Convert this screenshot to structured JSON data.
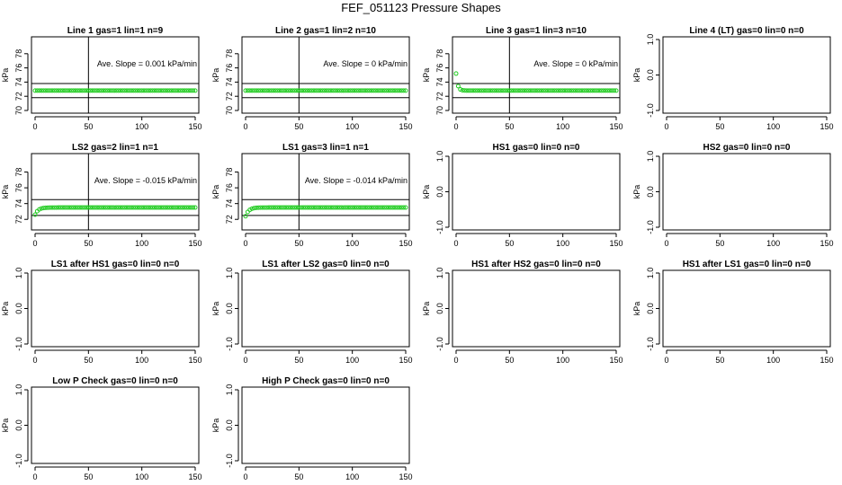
{
  "title": "FEF_051123  Pressure Shapes",
  "chart_data": [
    {
      "type": "scatter",
      "title": "Line 1 gas=1 lin=1 n=9",
      "ylabel": "kPa",
      "xlim": [
        0,
        150
      ],
      "ylim": [
        70,
        80
      ],
      "xticks": [
        0,
        50,
        100,
        150
      ],
      "yticks": [
        70,
        72,
        74,
        76,
        78
      ],
      "hlines": [
        73.8,
        71.8
      ],
      "vline": 50,
      "annotation": "Ave. Slope =  0.001  kPa/min",
      "color": "#22cc22",
      "series": [
        {
          "x_range": [
            0,
            150
          ],
          "shape": "flat",
          "level": 72.8,
          "step": 2
        }
      ]
    },
    {
      "type": "scatter",
      "title": "Line 2 gas=1 lin=2 n=10",
      "ylabel": "kPa",
      "xlim": [
        0,
        150
      ],
      "ylim": [
        70,
        80
      ],
      "xticks": [
        0,
        50,
        100,
        150
      ],
      "yticks": [
        70,
        72,
        74,
        76,
        78
      ],
      "hlines": [
        73.8,
        71.8
      ],
      "vline": 50,
      "annotation": "Ave. Slope =  0  kPa/min",
      "color": "#22cc22",
      "series": [
        {
          "x_range": [
            0,
            150
          ],
          "shape": "flat",
          "level": 72.8,
          "step": 2
        }
      ]
    },
    {
      "type": "scatter",
      "title": "Line 3 gas=1 lin=3 n=10",
      "ylabel": "kPa",
      "xlim": [
        0,
        150
      ],
      "ylim": [
        70,
        80
      ],
      "xticks": [
        0,
        50,
        100,
        150
      ],
      "yticks": [
        70,
        72,
        74,
        76,
        78
      ],
      "hlines": [
        73.8,
        71.8
      ],
      "vline": 50,
      "annotation": "Ave. Slope =  0  kPa/min",
      "color": "#22cc22",
      "series": [
        {
          "x_range": [
            0,
            150
          ],
          "shape": "decay",
          "start": 75.2,
          "level": 72.8,
          "tau": 1.5,
          "step": 2
        }
      ]
    },
    {
      "type": "scatter",
      "title": "Line 4 (LT) gas=0 lin=0 n=0",
      "ylabel": "kPa",
      "xlim": [
        0,
        150
      ],
      "ylim": [
        -1,
        1
      ],
      "xticks": [
        0,
        50,
        100,
        150
      ],
      "yticks": [
        -1.0,
        0.0,
        1.0
      ],
      "yticklabels": [
        "-1.0",
        "0.0",
        "1.0"
      ],
      "series": []
    },
    {
      "type": "scatter",
      "title": "LS2 gas=2 lin=1 n=1",
      "ylabel": "kPa",
      "xlim": [
        0,
        150
      ],
      "ylim": [
        71,
        80
      ],
      "xticks": [
        0,
        50,
        100,
        150
      ],
      "yticks": [
        72,
        74,
        76,
        78
      ],
      "hlines": [
        74.5,
        72.5
      ],
      "vline": 50,
      "annotation": "Ave. Slope =  -0.015  kPa/min",
      "color": "#22cc22",
      "series": [
        {
          "x_range": [
            0,
            150
          ],
          "shape": "rise",
          "start": 72.6,
          "level": 73.5,
          "tau": 3,
          "step": 2
        }
      ]
    },
    {
      "type": "scatter",
      "title": "LS1 gas=3 lin=1 n=1",
      "ylabel": "kPa",
      "xlim": [
        0,
        150
      ],
      "ylim": [
        71,
        80
      ],
      "xticks": [
        0,
        50,
        100,
        150
      ],
      "yticks": [
        72,
        74,
        76,
        78
      ],
      "hlines": [
        74.5,
        72.5
      ],
      "vline": 50,
      "annotation": "Ave. Slope =  -0.014  kPa/min",
      "color": "#22cc22",
      "series": [
        {
          "x_range": [
            0,
            150
          ],
          "shape": "rise",
          "start": 72.4,
          "level": 73.5,
          "tau": 3,
          "step": 2
        }
      ]
    },
    {
      "type": "scatter",
      "title": "HS1 gas=0 lin=0 n=0",
      "ylabel": "kPa",
      "xlim": [
        0,
        150
      ],
      "ylim": [
        -1,
        1
      ],
      "xticks": [
        0,
        50,
        100,
        150
      ],
      "yticks": [
        -1.0,
        0.0,
        1.0
      ],
      "yticklabels": [
        "-1.0",
        "0.0",
        "1.0"
      ],
      "series": []
    },
    {
      "type": "scatter",
      "title": "HS2 gas=0 lin=0 n=0",
      "ylabel": "kPa",
      "xlim": [
        0,
        150
      ],
      "ylim": [
        -1,
        1
      ],
      "xticks": [
        0,
        50,
        100,
        150
      ],
      "yticks": [
        -1.0,
        0.0,
        1.0
      ],
      "yticklabels": [
        "-1.0",
        "0.0",
        "1.0"
      ],
      "series": []
    },
    {
      "type": "scatter",
      "title": "LS1 after HS1 gas=0 lin=0 n=0",
      "ylabel": "kPa",
      "xlim": [
        0,
        150
      ],
      "ylim": [
        -1,
        1
      ],
      "xticks": [
        0,
        50,
        100,
        150
      ],
      "yticks": [
        -1.0,
        0.0,
        1.0
      ],
      "yticklabels": [
        "-1.0",
        "0.0",
        "1.0"
      ],
      "series": []
    },
    {
      "type": "scatter",
      "title": "LS1 after LS2 gas=0 lin=0 n=0",
      "ylabel": "kPa",
      "xlim": [
        0,
        150
      ],
      "ylim": [
        -1,
        1
      ],
      "xticks": [
        0,
        50,
        100,
        150
      ],
      "yticks": [
        -1.0,
        0.0,
        1.0
      ],
      "yticklabels": [
        "-1.0",
        "0.0",
        "1.0"
      ],
      "series": []
    },
    {
      "type": "scatter",
      "title": "HS1 after HS2 gas=0 lin=0 n=0",
      "ylabel": "kPa",
      "xlim": [
        0,
        150
      ],
      "ylim": [
        -1,
        1
      ],
      "xticks": [
        0,
        50,
        100,
        150
      ],
      "yticks": [
        -1.0,
        0.0,
        1.0
      ],
      "yticklabels": [
        "-1.0",
        "0.0",
        "1.0"
      ],
      "series": []
    },
    {
      "type": "scatter",
      "title": "HS1 after LS1 gas=0 lin=0 n=0",
      "ylabel": "kPa",
      "xlim": [
        0,
        150
      ],
      "ylim": [
        -1,
        1
      ],
      "xticks": [
        0,
        50,
        100,
        150
      ],
      "yticks": [
        -1.0,
        0.0,
        1.0
      ],
      "yticklabels": [
        "-1.0",
        "0.0",
        "1.0"
      ],
      "series": []
    },
    {
      "type": "scatter",
      "title": "Low P Check gas=0 lin=0 n=0",
      "ylabel": "kPa",
      "xlim": [
        0,
        150
      ],
      "ylim": [
        -1,
        1
      ],
      "xticks": [
        0,
        50,
        100,
        150
      ],
      "yticks": [
        -1.0,
        0.0,
        1.0
      ],
      "yticklabels": [
        "-1.0",
        "0.0",
        "1.0"
      ],
      "series": []
    },
    {
      "type": "scatter",
      "title": "High P Check gas=0 lin=0 n=0",
      "ylabel": "kPa",
      "xlim": [
        0,
        150
      ],
      "ylim": [
        -1,
        1
      ],
      "xticks": [
        0,
        50,
        100,
        150
      ],
      "yticks": [
        -1.0,
        0.0,
        1.0
      ],
      "yticklabels": [
        "-1.0",
        "0.0",
        "1.0"
      ],
      "series": []
    }
  ]
}
